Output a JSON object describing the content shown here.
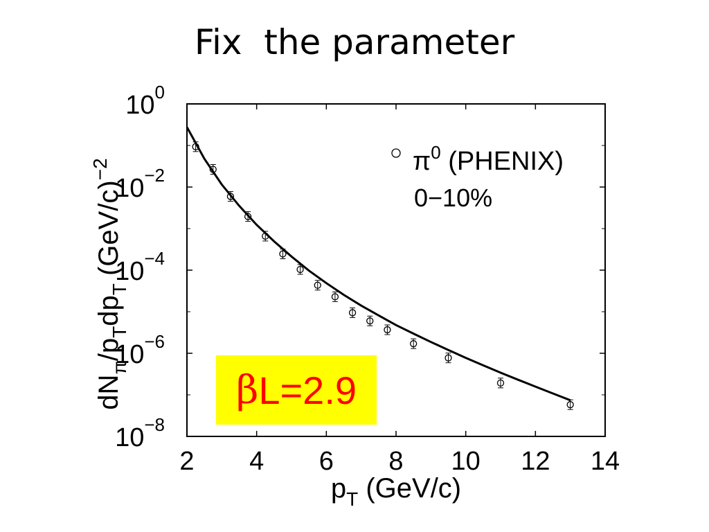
{
  "slide": {
    "title": "Fix  the parameter",
    "highlight_symbol": "β",
    "highlight_text": "L=2.9",
    "highlight_bg": "#ffff00",
    "highlight_color": "#ff0000"
  },
  "chart_data": {
    "type": "scatter",
    "title": "",
    "xlabel": "p_T (GeV/c)",
    "ylabel": "dN_π/p_T dp_T (GeV/c)^-2",
    "xlim": [
      2,
      14
    ],
    "ylim": [
      1e-08,
      1
    ],
    "yscale": "log",
    "grid": false,
    "x_ticks": [
      "2",
      "4",
      "6",
      "8",
      "10",
      "12",
      "14"
    ],
    "y_ticks": [
      {
        "base": "10",
        "exp": "0"
      },
      {
        "base": "10",
        "exp": "−2"
      },
      {
        "base": "10",
        "exp": "−4"
      },
      {
        "base": "10",
        "exp": "−6"
      },
      {
        "base": "10",
        "exp": "−8"
      }
    ],
    "legend": {
      "position": "top-right",
      "marker": "○",
      "entry": "π",
      "entry_sup": "0",
      "entry_rest": " (PHENIX)",
      "line2": "0−10%"
    },
    "series": [
      {
        "name": "π0 (PHENIX)",
        "kind": "points",
        "x": [
          2.25,
          2.75,
          3.25,
          3.75,
          4.25,
          4.75,
          5.25,
          5.75,
          6.25,
          6.75,
          7.25,
          7.75,
          8.5,
          9.5,
          11.0,
          13.0
        ],
        "y": [
          0.0933,
          0.0266,
          0.00594,
          0.00195,
          0.000658,
          0.000246,
          0.000104,
          4.34e-05,
          2.29e-05,
          9.46e-06,
          6e-06,
          3.68e-06,
          1.7e-06,
          7.74e-07,
          1.93e-07,
          5.8e-08
        ]
      },
      {
        "name": "fit",
        "kind": "line",
        "x": [
          2.0,
          2.5,
          3.0,
          3.5,
          4.0,
          4.5,
          5.0,
          5.5,
          6.0,
          6.5,
          7.0,
          7.5,
          8.0,
          8.5,
          9.0,
          9.5,
          10.0,
          10.5,
          11.0,
          11.5,
          12.0,
          12.5,
          13.0
        ],
        "y": [
          0.277,
          0.0479,
          0.0115,
          0.00352,
          0.00123,
          0.000494,
          0.000213,
          9.75e-05,
          4.87e-05,
          2.55e-05,
          1.4e-05,
          8.15e-06,
          4.77e-06,
          2.97e-06,
          1.87e-06,
          1.2e-06,
          7.76e-07,
          5.13e-07,
          3.41e-07,
          2.31e-07,
          1.58e-07,
          1.08e-07,
          7.42e-08
        ]
      }
    ]
  }
}
